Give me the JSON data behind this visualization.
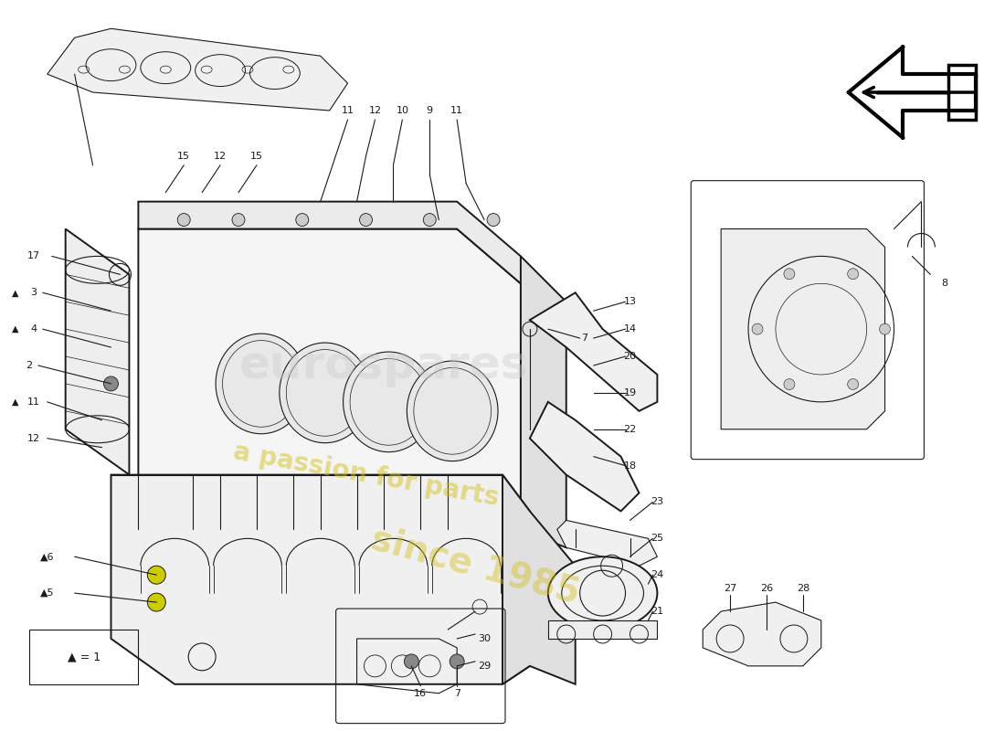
{
  "bg_color": "#ffffff",
  "lc": "#1a1a1a",
  "wm1": "eurospares",
  "wm2": "a passion for parts",
  "wm3": "since 1985",
  "wm_color": "#cccccc",
  "wm_yellow": "#d4c020"
}
